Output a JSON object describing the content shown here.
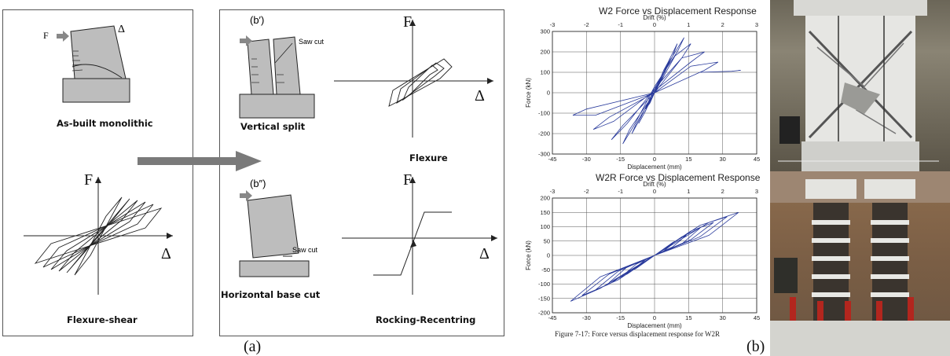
{
  "panel_a": {
    "asbuilt_label": "As-built monolithic",
    "flexshear_label": "Flexure-shear",
    "vertical_split_label": "Vertical split",
    "horizontal_cut_label": "Horizontal base cut",
    "flexure_label": "Flexure",
    "rocking_label": "Rocking-Recentring",
    "b_prime": "(b′)",
    "b_dprime": "(b″)",
    "saw_cut_1": "Saw cut",
    "saw_cut_2": "Saw cut",
    "F": "F",
    "delta": "Δ",
    "sub_label": "(a)"
  },
  "chart_data": [
    {
      "type": "line",
      "title": "W2 Force vs Displacement Response",
      "top_axis_label": "Drift (%)",
      "top_ticks": [
        -3,
        -2,
        -1,
        0,
        1,
        2,
        3
      ],
      "xlabel": "Displacement (mm)",
      "ylabel": "Force (kN)",
      "xlim": [
        -45,
        45
      ],
      "ylim": [
        -300,
        300
      ],
      "x_ticks": [
        -45,
        -30,
        -15,
        0,
        15,
        30,
        45
      ],
      "y_ticks": [
        -300,
        -200,
        -100,
        0,
        100,
        200,
        300
      ],
      "grid": true,
      "series": [
        {
          "x": [
            0,
            2,
            4,
            2,
            0,
            -2,
            -4,
            -2,
            0,
            4,
            7,
            5,
            0,
            -4,
            -7,
            -5,
            0,
            6,
            10,
            8,
            0,
            -6,
            -10,
            -8,
            0,
            8,
            13,
            10,
            0,
            -9,
            -14,
            -11,
            0,
            9,
            16,
            12,
            0,
            -12,
            -19,
            -14,
            0,
            12,
            22,
            16,
            0,
            -18,
            -27,
            -20,
            0,
            16,
            28,
            22,
            0,
            -26,
            -36,
            -30,
            0,
            20,
            34,
            38,
            37
          ],
          "y": [
            0,
            40,
            80,
            50,
            0,
            -40,
            -80,
            -50,
            0,
            110,
            170,
            120,
            10,
            -90,
            -150,
            -110,
            0,
            150,
            240,
            180,
            20,
            -120,
            -200,
            -150,
            0,
            180,
            270,
            200,
            30,
            -160,
            -250,
            -180,
            0,
            180,
            240,
            170,
            20,
            -150,
            -230,
            -160,
            0,
            170,
            200,
            150,
            10,
            -140,
            -180,
            -120,
            0,
            130,
            150,
            110,
            0,
            -110,
            -110,
            -80,
            0,
            100,
            105,
            110,
            110
          ]
        }
      ]
    },
    {
      "type": "line",
      "title": "W2R Force vs Displacement Response",
      "top_axis_label": "Drift (%)",
      "top_ticks": [
        -3,
        -2,
        -1,
        0,
        1,
        2,
        3
      ],
      "xlabel": "Displacement (mm)",
      "ylabel": "Force (kN)",
      "xlim": [
        -45,
        45
      ],
      "ylim": [
        -200,
        200
      ],
      "x_ticks": [
        -45,
        -30,
        -15,
        0,
        15,
        30,
        45
      ],
      "y_ticks": [
        -200,
        -150,
        -100,
        -50,
        0,
        50,
        100,
        150,
        200
      ],
      "grid": true,
      "series": [
        {
          "x": [
            0,
            4,
            8,
            4,
            0,
            -4,
            -8,
            -4,
            0,
            8,
            14,
            8,
            0,
            -8,
            -14,
            -8,
            0,
            12,
            20,
            12,
            0,
            -12,
            -20,
            -12,
            0,
            16,
            26,
            16,
            0,
            -16,
            -26,
            -16,
            0,
            20,
            32,
            20,
            0,
            -20,
            -32,
            -20,
            0,
            24,
            37,
            24,
            0,
            -24,
            -37,
            -24,
            0
          ],
          "y": [
            0,
            20,
            40,
            15,
            0,
            -20,
            -40,
            -15,
            0,
            45,
            70,
            30,
            0,
            -45,
            -70,
            -30,
            0,
            65,
            95,
            40,
            0,
            -65,
            -95,
            -40,
            0,
            85,
            115,
            55,
            0,
            -85,
            -120,
            -55,
            0,
            105,
            135,
            65,
            0,
            -100,
            -140,
            -65,
            0,
            115,
            150,
            70,
            0,
            -115,
            -160,
            -75,
            0
          ]
        }
      ]
    }
  ],
  "caption": "Figure 7-17: Force versus displacement response for W2R",
  "sub_label_b": "(b)"
}
